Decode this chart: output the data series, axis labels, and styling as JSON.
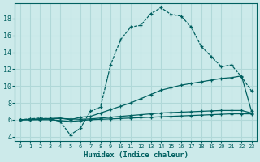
{
  "xlabel": "Humidex (Indice chaleur)",
  "bg_color": "#cceaea",
  "grid_color": "#b0d8d8",
  "line_color": "#006060",
  "xlim": [
    -0.5,
    23.5
  ],
  "ylim": [
    3.5,
    19.8
  ],
  "yticks": [
    4,
    6,
    8,
    10,
    12,
    14,
    16,
    18
  ],
  "xticks": [
    0,
    1,
    2,
    3,
    4,
    5,
    6,
    7,
    8,
    9,
    10,
    11,
    12,
    13,
    14,
    15,
    16,
    17,
    18,
    19,
    20,
    21,
    22,
    23
  ],
  "curve1_x": [
    0,
    1,
    2,
    3,
    4,
    5,
    6,
    7,
    8,
    9,
    10,
    11,
    12,
    13,
    14,
    15,
    16,
    17,
    18,
    19,
    20,
    21,
    22,
    23
  ],
  "curve1_y": [
    6.0,
    6.1,
    6.2,
    6.1,
    5.8,
    4.2,
    5.0,
    7.0,
    7.5,
    12.5,
    15.5,
    17.0,
    17.2,
    18.6,
    19.3,
    18.5,
    18.3,
    17.0,
    14.7,
    13.5,
    12.3,
    12.5,
    11.1,
    9.4
  ],
  "curve2_x": [
    0,
    1,
    2,
    3,
    4,
    5,
    6,
    7,
    8,
    9,
    10,
    11,
    12,
    13,
    14,
    15,
    16,
    17,
    18,
    19,
    20,
    21,
    22,
    23
  ],
  "curve2_y": [
    6.0,
    6.05,
    6.1,
    6.15,
    6.2,
    6.0,
    6.3,
    6.4,
    6.8,
    7.2,
    7.6,
    8.0,
    8.5,
    9.0,
    9.5,
    9.8,
    10.1,
    10.3,
    10.5,
    10.7,
    10.9,
    11.0,
    11.2,
    7.0
  ],
  "curve3_x": [
    0,
    1,
    2,
    3,
    4,
    5,
    6,
    7,
    8,
    9,
    10,
    11,
    12,
    13,
    14,
    15,
    16,
    17,
    18,
    19,
    20,
    21,
    22,
    23
  ],
  "curve3_y": [
    6.0,
    6.0,
    6.05,
    6.1,
    6.15,
    6.1,
    6.05,
    6.1,
    6.2,
    6.3,
    6.4,
    6.5,
    6.6,
    6.7,
    6.8,
    6.85,
    6.9,
    6.95,
    7.0,
    7.05,
    7.1,
    7.1,
    7.1,
    6.8
  ],
  "curve4_x": [
    0,
    1,
    2,
    3,
    4,
    5,
    6,
    7,
    8,
    9,
    10,
    11,
    12,
    13,
    14,
    15,
    16,
    17,
    18,
    19,
    20,
    21,
    22,
    23
  ],
  "curve4_y": [
    6.0,
    6.0,
    6.0,
    6.0,
    5.9,
    5.8,
    5.9,
    6.0,
    6.05,
    6.1,
    6.15,
    6.2,
    6.25,
    6.3,
    6.35,
    6.4,
    6.45,
    6.5,
    6.55,
    6.6,
    6.65,
    6.7,
    6.7,
    6.7
  ]
}
